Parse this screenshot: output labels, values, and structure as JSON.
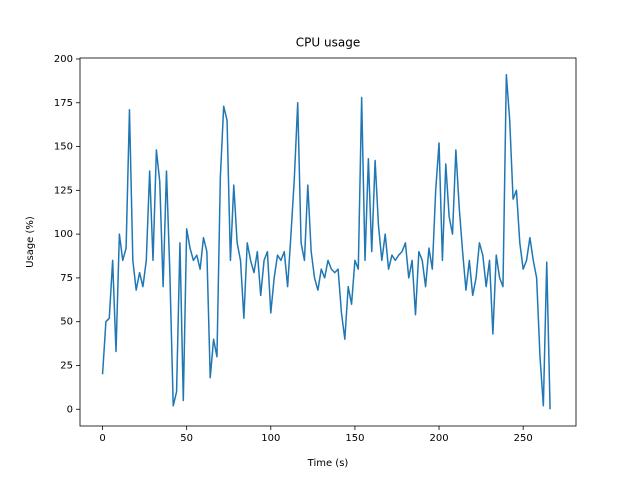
{
  "chart_data": {
    "type": "line",
    "title": "CPU usage",
    "x_label": "Time (s)",
    "y_label": "Usage (%)",
    "x": [
      0,
      2,
      4,
      6,
      8,
      10,
      12,
      14,
      16,
      18,
      20,
      22,
      24,
      26,
      28,
      30,
      32,
      34,
      36,
      38,
      40,
      42,
      44,
      46,
      48,
      50,
      52,
      54,
      56,
      58,
      60,
      62,
      64,
      66,
      68,
      70,
      72,
      74,
      76,
      78,
      80,
      82,
      84,
      86,
      88,
      90,
      92,
      94,
      96,
      98,
      100,
      102,
      104,
      106,
      108,
      110,
      112,
      114,
      116,
      118,
      120,
      122,
      124,
      126,
      128,
      130,
      132,
      134,
      136,
      138,
      140,
      142,
      144,
      146,
      148,
      150,
      152,
      154,
      156,
      158,
      160,
      162,
      164,
      166,
      168,
      170,
      172,
      174,
      176,
      178,
      180,
      182,
      184,
      186,
      188,
      190,
      192,
      194,
      196,
      198,
      200,
      202,
      204,
      206,
      208,
      210,
      212,
      214,
      216,
      218,
      220,
      222,
      224,
      226,
      228,
      230,
      232,
      234,
      236,
      238,
      240,
      242,
      244,
      246,
      248,
      250,
      252,
      254,
      256,
      258,
      260,
      262,
      264,
      266
    ],
    "series": [
      {
        "name": "CPU",
        "color": "#1f77b4",
        "values": [
          20,
          50,
          52,
          85,
          33,
          100,
          85,
          92,
          171,
          85,
          68,
          78,
          70,
          85,
          136,
          85,
          148,
          130,
          70,
          136,
          78,
          2,
          10,
          95,
          5,
          103,
          92,
          85,
          88,
          80,
          98,
          90,
          18,
          40,
          30,
          132,
          173,
          165,
          85,
          128,
          95,
          85,
          52,
          95,
          85,
          78,
          90,
          65,
          85,
          90,
          55,
          75,
          88,
          85,
          90,
          70,
          100,
          132,
          175,
          95,
          85,
          128,
          90,
          75,
          68,
          80,
          75,
          85,
          80,
          78,
          80,
          55,
          40,
          70,
          60,
          85,
          80,
          178,
          85,
          143,
          90,
          142,
          105,
          85,
          100,
          80,
          88,
          85,
          88,
          90,
          95,
          75,
          85,
          54,
          90,
          85,
          70,
          92,
          80,
          125,
          152,
          85,
          140,
          110,
          100,
          148,
          115,
          90,
          68,
          85,
          65,
          75,
          95,
          88,
          70,
          85,
          43,
          88,
          75,
          70,
          191,
          165,
          120,
          125,
          95,
          80,
          85,
          98,
          85,
          75,
          30,
          2,
          84,
          0
        ]
      }
    ],
    "xlim": [
      -13.4,
      281.4
    ],
    "ylim": [
      -9.55,
      200.55
    ],
    "xticks": [
      0,
      50,
      100,
      150,
      200,
      250
    ],
    "yticks": [
      0,
      25,
      50,
      75,
      100,
      125,
      150,
      175,
      200
    ]
  }
}
